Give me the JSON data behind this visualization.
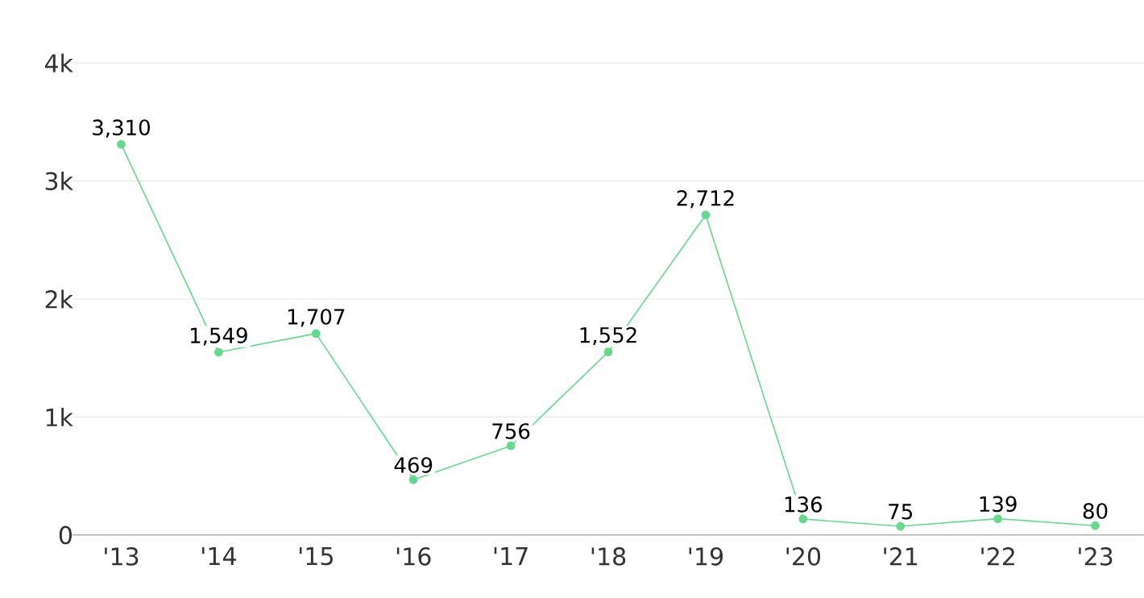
{
  "chart_data": {
    "type": "line",
    "categories": [
      "'13",
      "'14",
      "'15",
      "'16",
      "'17",
      "'18",
      "'19",
      "'20",
      "'21",
      "'22",
      "'23"
    ],
    "series": [
      {
        "color": "#66d98e",
        "values": [
          3310,
          1549,
          1707,
          469,
          756,
          1552,
          2712,
          136,
          75,
          139,
          80
        ],
        "value_labels": [
          "3,310",
          "1,549",
          "1,707",
          "469",
          "756",
          "1,552",
          "2,712",
          "136",
          "75",
          "139",
          "80"
        ]
      }
    ],
    "ylim": [
      0,
      4000
    ],
    "yticks": [
      {
        "value": 0,
        "label": "0"
      },
      {
        "value": 1000,
        "label": "1k"
      },
      {
        "value": 2000,
        "label": "2k"
      },
      {
        "value": 3000,
        "label": "3k"
      },
      {
        "value": 4000,
        "label": "4k"
      }
    ],
    "grid": "y",
    "marker": "circle",
    "line_style": "solid"
  }
}
